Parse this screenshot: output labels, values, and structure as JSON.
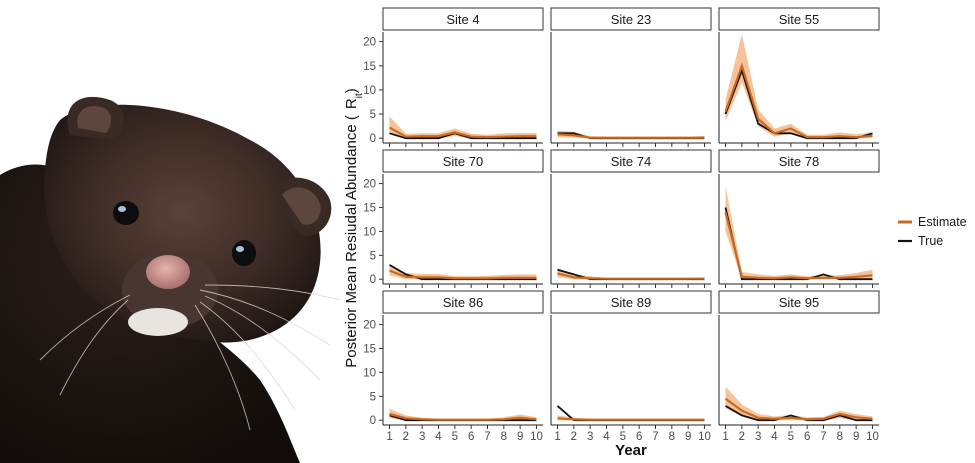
{
  "photo": {
    "subject": "mink-icon"
  },
  "chart_data": {
    "type": "line",
    "ylabel": "Posterior Mean Resiudal Abundance (",
    "ylabel_symbol": "R",
    "ylabel_subscript": "it",
    "ylabel_close": ")",
    "xlabel": "Year",
    "x": [
      1,
      2,
      3,
      4,
      5,
      6,
      7,
      8,
      9,
      10
    ],
    "x_tick_labels": [
      "1",
      "2",
      "3",
      "4",
      "5",
      "6",
      "7",
      "8",
      "9",
      "10"
    ],
    "ylim": [
      -1,
      22
    ],
    "y_ticks": [
      0,
      5,
      10,
      15,
      20
    ],
    "y_tick_labels": [
      "0",
      "5",
      "10",
      "15",
      "20"
    ],
    "colors": {
      "estimate": "#c96a1f",
      "band": "#f3b887",
      "true": "#111111"
    },
    "legend": [
      {
        "name": "Estimate",
        "color": "#c96a1f"
      },
      {
        "name": "True",
        "color": "#111111"
      }
    ],
    "panels": [
      {
        "site": "Site 4",
        "estimate": [
          2.2,
          0.3,
          0.4,
          0.4,
          1.2,
          0.3,
          0.2,
          0.3,
          0.4,
          0.4
        ],
        "lower": [
          0.8,
          0.0,
          0.0,
          0.0,
          0.4,
          0.0,
          0.0,
          0.0,
          0.0,
          0.0
        ],
        "upper": [
          4.5,
          0.9,
          1.0,
          1.0,
          2.0,
          0.9,
          0.7,
          1.0,
          1.1,
          1.1
        ],
        "true": [
          1.0,
          0.0,
          0.0,
          0.0,
          1.0,
          0.0,
          0.0,
          0.0,
          0.0,
          0.0
        ]
      },
      {
        "site": "Site 23",
        "estimate": [
          0.8,
          0.6,
          0.1,
          0.1,
          0.1,
          0.1,
          0.1,
          0.1,
          0.1,
          0.1
        ],
        "lower": [
          0.2,
          0.1,
          0.0,
          0.0,
          0.0,
          0.0,
          0.0,
          0.0,
          0.0,
          0.0
        ],
        "upper": [
          1.6,
          1.3,
          0.4,
          0.3,
          0.3,
          0.3,
          0.3,
          0.3,
          0.3,
          0.5
        ],
        "true": [
          1.0,
          1.0,
          0.0,
          0.0,
          0.0,
          0.0,
          0.0,
          0.0,
          0.0,
          0.0
        ]
      },
      {
        "site": "Site 55",
        "estimate": [
          5.5,
          15.0,
          4.0,
          1.0,
          2.0,
          0.2,
          0.2,
          0.4,
          0.2,
          0.5
        ],
        "lower": [
          3.5,
          11.5,
          2.5,
          0.3,
          1.0,
          0.0,
          0.0,
          0.0,
          0.0,
          0.0
        ],
        "upper": [
          8.0,
          21.5,
          6.0,
          2.0,
          3.0,
          0.7,
          0.7,
          1.2,
          0.8,
          1.2
        ],
        "true": [
          5.0,
          14.0,
          3.0,
          1.0,
          1.0,
          0.0,
          0.0,
          0.0,
          0.0,
          1.0
        ]
      },
      {
        "site": "Site 70",
        "estimate": [
          1.8,
          0.5,
          0.4,
          0.4,
          0.2,
          0.2,
          0.2,
          0.3,
          0.3,
          0.3
        ],
        "lower": [
          0.8,
          0.0,
          0.0,
          0.0,
          0.0,
          0.0,
          0.0,
          0.0,
          0.0,
          0.0
        ],
        "upper": [
          3.0,
          1.3,
          1.1,
          1.1,
          0.6,
          0.6,
          0.7,
          0.9,
          1.0,
          1.0
        ],
        "true": [
          3.0,
          1.0,
          0.0,
          0.0,
          0.0,
          0.0,
          0.0,
          0.0,
          0.0,
          0.0
        ]
      },
      {
        "site": "Site 74",
        "estimate": [
          1.2,
          0.4,
          0.2,
          0.1,
          0.1,
          0.1,
          0.1,
          0.1,
          0.1,
          0.1
        ],
        "lower": [
          0.4,
          0.0,
          0.0,
          0.0,
          0.0,
          0.0,
          0.0,
          0.0,
          0.0,
          0.0
        ],
        "upper": [
          2.3,
          1.0,
          0.6,
          0.3,
          0.3,
          0.3,
          0.3,
          0.3,
          0.3,
          0.4
        ],
        "true": [
          2.0,
          1.0,
          0.0,
          0.0,
          0.0,
          0.0,
          0.0,
          0.0,
          0.0,
          0.0
        ]
      },
      {
        "site": "Site 78",
        "estimate": [
          14.0,
          0.5,
          0.3,
          0.2,
          0.4,
          0.2,
          0.3,
          0.3,
          0.5,
          0.8
        ],
        "lower": [
          10.0,
          0.0,
          0.0,
          0.0,
          0.0,
          0.0,
          0.0,
          0.0,
          0.0,
          0.0
        ],
        "upper": [
          19.5,
          1.5,
          1.0,
          0.7,
          1.0,
          0.6,
          0.8,
          0.8,
          1.3,
          2.0
        ],
        "true": [
          15.0,
          0.0,
          0.0,
          0.0,
          0.0,
          0.0,
          1.0,
          0.0,
          0.0,
          0.0
        ]
      },
      {
        "site": "Site 86",
        "estimate": [
          1.3,
          0.4,
          0.2,
          0.1,
          0.1,
          0.1,
          0.1,
          0.2,
          0.5,
          0.2
        ],
        "lower": [
          0.4,
          0.0,
          0.0,
          0.0,
          0.0,
          0.0,
          0.0,
          0.0,
          0.0,
          0.0
        ],
        "upper": [
          2.4,
          1.0,
          0.5,
          0.3,
          0.3,
          0.3,
          0.3,
          0.6,
          1.2,
          0.6
        ],
        "true": [
          1.0,
          0.0,
          0.0,
          0.0,
          0.0,
          0.0,
          0.0,
          0.0,
          0.0,
          0.0
        ]
      },
      {
        "site": "Site 89",
        "estimate": [
          0.4,
          0.2,
          0.1,
          0.1,
          0.1,
          0.1,
          0.1,
          0.1,
          0.1,
          0.1
        ],
        "lower": [
          0.0,
          0.0,
          0.0,
          0.0,
          0.0,
          0.0,
          0.0,
          0.0,
          0.0,
          0.0
        ],
        "upper": [
          1.0,
          0.5,
          0.3,
          0.3,
          0.3,
          0.3,
          0.3,
          0.3,
          0.3,
          0.3
        ],
        "true": [
          3.0,
          0.0,
          0.0,
          0.0,
          0.0,
          0.0,
          0.0,
          0.0,
          0.0,
          0.0
        ]
      },
      {
        "site": "Site 95",
        "estimate": [
          4.5,
          2.0,
          0.5,
          0.3,
          0.5,
          0.2,
          0.3,
          1.3,
          0.6,
          0.3
        ],
        "lower": [
          2.5,
          0.8,
          0.0,
          0.0,
          0.0,
          0.0,
          0.0,
          0.4,
          0.0,
          0.0
        ],
        "upper": [
          7.0,
          3.3,
          1.3,
          0.8,
          1.1,
          0.6,
          0.7,
          2.0,
          1.3,
          0.8
        ],
        "true": [
          3.0,
          1.0,
          0.0,
          0.0,
          1.0,
          0.0,
          0.0,
          1.0,
          0.0,
          0.0
        ]
      }
    ]
  }
}
